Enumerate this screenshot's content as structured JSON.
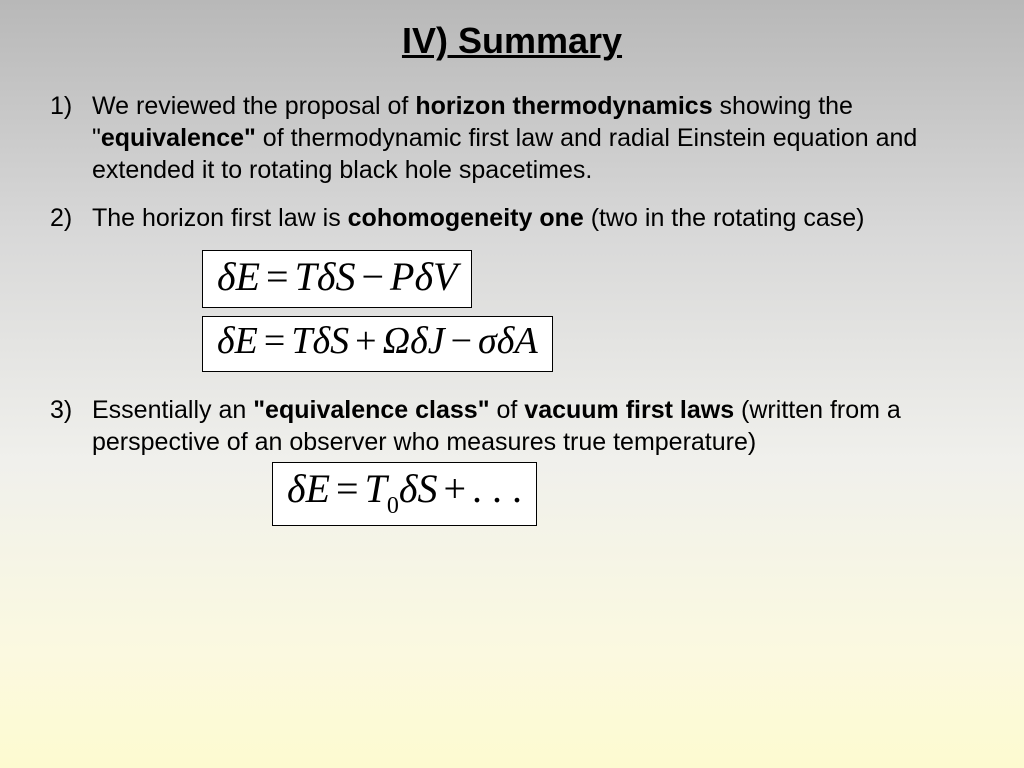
{
  "title": "IV) Summary",
  "items": {
    "p1_a": "We reviewed the proposal of ",
    "p1_b": "horizon thermodynamics",
    "p1_c": " showing the \"",
    "p1_d": "equivalence\"",
    "p1_e": " of thermodynamic first law and radial Einstein equation and extended it to rotating black hole spacetimes.",
    "p2_a": "The horizon first law is ",
    "p2_b": "cohomogeneity one",
    "p2_c": " (two in the rotating case)",
    "p3_a": "Essentially an ",
    "p3_b": "\"equivalence class\"",
    "p3_c": " of ",
    "p3_d": "vacuum first laws",
    "p3_e": " (written from a perspective of an observer who measures true temperature)"
  },
  "equations": {
    "eq1": {
      "dE": "δE",
      "eq": "=",
      "T": "T",
      "dS": "δS",
      "minus": "−",
      "P": "P",
      "dV": "δV"
    },
    "eq2": {
      "dE": "δE",
      "eq": "=",
      "T": "T",
      "dS": "δS",
      "plus": "+",
      "Om": "Ω",
      "dJ": "δJ",
      "minus": "−",
      "sig": "σ",
      "dA": "δA"
    },
    "eq3": {
      "dE": "δE",
      "eq": "=",
      "T": "T",
      "sub0": "0",
      "dS": "δS",
      "plus": "+",
      "dots": ". . ."
    }
  },
  "style": {
    "background_gradient": [
      "#b8b8b8",
      "#d8d8d8",
      "#f0f0ec",
      "#fbf9e0",
      "#fdfad0"
    ],
    "title_fontsize": 36,
    "body_fontsize": 25,
    "eq_fontsize": 40,
    "eq_background": "#ffffff",
    "eq_border": "#000000",
    "text_color": "#000000",
    "font_body": "Arial",
    "font_eq": "Times New Roman"
  }
}
